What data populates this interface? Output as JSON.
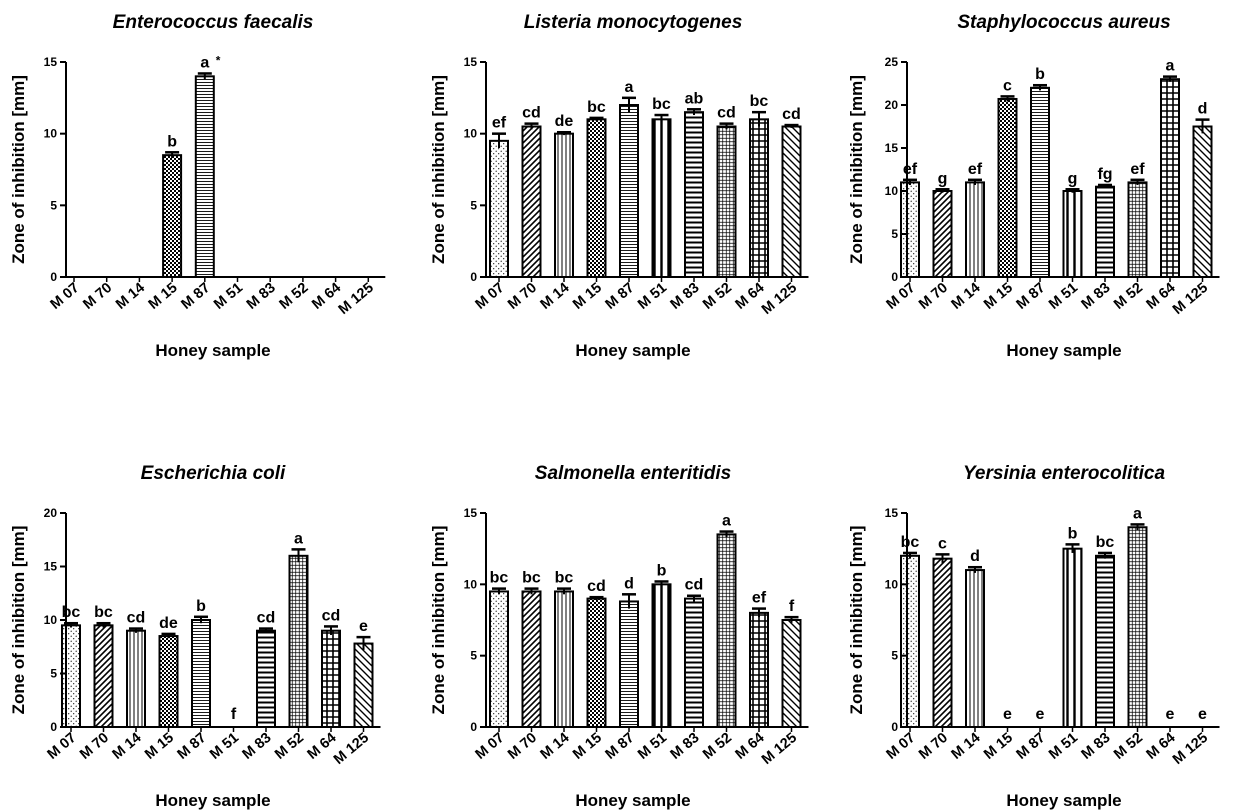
{
  "chart_data": [
    {
      "type": "bar",
      "title": "Enterococcus faecalis",
      "xlabel": "Honey sample",
      "ylabel": "Zone of inhibition [mm]",
      "ylim": [
        0,
        15
      ],
      "yticks": [
        0,
        5,
        10,
        15
      ],
      "categories": [
        "M 07",
        "M 70",
        "M 14",
        "M 15",
        "M 87",
        "M 51",
        "M 83",
        "M 52",
        "M 64",
        "M 125"
      ],
      "values": [
        0,
        0,
        0,
        8.5,
        14,
        0,
        0,
        0,
        0,
        0
      ],
      "errors": [
        0,
        0,
        0,
        0.2,
        0.2,
        0,
        0,
        0,
        0,
        0
      ],
      "letters": [
        "",
        "",
        "",
        "b",
        "a",
        "",
        "",
        "",
        "",
        ""
      ],
      "asterisk_label": "*"
    },
    {
      "type": "bar",
      "title": "Listeria monocytogenes",
      "xlabel": "Honey sample",
      "ylabel": "Zone of inhibition [mm]",
      "ylim": [
        0,
        15
      ],
      "yticks": [
        0,
        5,
        10,
        15
      ],
      "categories": [
        "M 07",
        "M 70",
        "M 14",
        "M 15",
        "M 87",
        "M 51",
        "M 83",
        "M 52",
        "M 64",
        "M 125"
      ],
      "values": [
        9.5,
        10.5,
        10,
        11,
        12,
        11,
        11.5,
        10.5,
        11,
        10.5
      ],
      "errors": [
        0.5,
        0.2,
        0.1,
        0.1,
        0.5,
        0.3,
        0.2,
        0.2,
        0.5,
        0.1
      ],
      "letters": [
        "ef",
        "cd",
        "de",
        "bc",
        "a",
        "bc",
        "ab",
        "cd",
        "bc",
        "cd"
      ]
    },
    {
      "type": "bar",
      "title": "Staphylococcus aureus",
      "xlabel": "Honey sample",
      "ylabel": "Zone of inhibition [mm]",
      "ylim": [
        0,
        25
      ],
      "yticks": [
        0,
        5,
        10,
        15,
        20,
        25
      ],
      "categories": [
        "M 07",
        "M 70",
        "M 14",
        "M 15",
        "M 87",
        "M 51",
        "M 83",
        "M 52",
        "M 64",
        "M 125"
      ],
      "values": [
        11,
        10,
        11,
        20.7,
        22,
        10,
        10.5,
        11,
        23,
        17.5
      ],
      "errors": [
        0.3,
        0.2,
        0.3,
        0.3,
        0.3,
        0.2,
        0.2,
        0.3,
        0.3,
        0.8
      ],
      "letters": [
        "ef",
        "g",
        "ef",
        "c",
        "b",
        "g",
        "fg",
        "ef",
        "a",
        "d"
      ]
    },
    {
      "type": "bar",
      "title": "Escherichia coli",
      "xlabel": "Honey sample",
      "ylabel": "Zone of inhibition [mm]",
      "ylim": [
        0,
        20
      ],
      "yticks": [
        0,
        5,
        10,
        15,
        20
      ],
      "categories": [
        "M 07",
        "M 70",
        "M 14",
        "M 15",
        "M 87",
        "M 51",
        "M 83",
        "M 52",
        "M 64",
        "M 125"
      ],
      "values": [
        9.5,
        9.5,
        9,
        8.5,
        10,
        0,
        9,
        16,
        9,
        7.8
      ],
      "errors": [
        0.2,
        0.2,
        0.2,
        0.2,
        0.3,
        0,
        0.2,
        0.6,
        0.4,
        0.6
      ],
      "letters": [
        "bc",
        "bc",
        "cd",
        "de",
        "b",
        "f",
        "cd",
        "a",
        "cd",
        "e"
      ]
    },
    {
      "type": "bar",
      "title": "Salmonella enteritidis",
      "xlabel": "Honey sample",
      "ylabel": "Zone of inhibition [mm]",
      "ylim": [
        0,
        15
      ],
      "yticks": [
        0,
        5,
        10,
        15
      ],
      "categories": [
        "M 07",
        "M 70",
        "M 14",
        "M 15",
        "M 87",
        "M 51",
        "M 83",
        "M 52",
        "M 64",
        "M 125"
      ],
      "values": [
        9.5,
        9.5,
        9.5,
        9,
        8.8,
        10,
        9,
        13.5,
        8,
        7.5
      ],
      "errors": [
        0.2,
        0.2,
        0.2,
        0.1,
        0.5,
        0.2,
        0.2,
        0.2,
        0.3,
        0.2
      ],
      "letters": [
        "bc",
        "bc",
        "bc",
        "cd",
        "d",
        "b",
        "cd",
        "a",
        "ef",
        "f"
      ]
    },
    {
      "type": "bar",
      "title": "Yersinia enterocolitica",
      "xlabel": "Honey sample",
      "ylabel": "Zone of inhibition [mm]",
      "ylim": [
        0,
        15
      ],
      "yticks": [
        0,
        5,
        10,
        15
      ],
      "categories": [
        "M 07",
        "M 70",
        "M 14",
        "M 15",
        "M 87",
        "M 51",
        "M 83",
        "M 52",
        "M 64",
        "M 125"
      ],
      "values": [
        12,
        11.8,
        11,
        0,
        0,
        12.5,
        12,
        14,
        0,
        0
      ],
      "errors": [
        0.2,
        0.3,
        0.2,
        0,
        0,
        0.3,
        0.2,
        0.2,
        0,
        0
      ],
      "letters": [
        "bc",
        "c",
        "d",
        "e",
        "e",
        "b",
        "bc",
        "a",
        "e",
        "e"
      ]
    }
  ]
}
